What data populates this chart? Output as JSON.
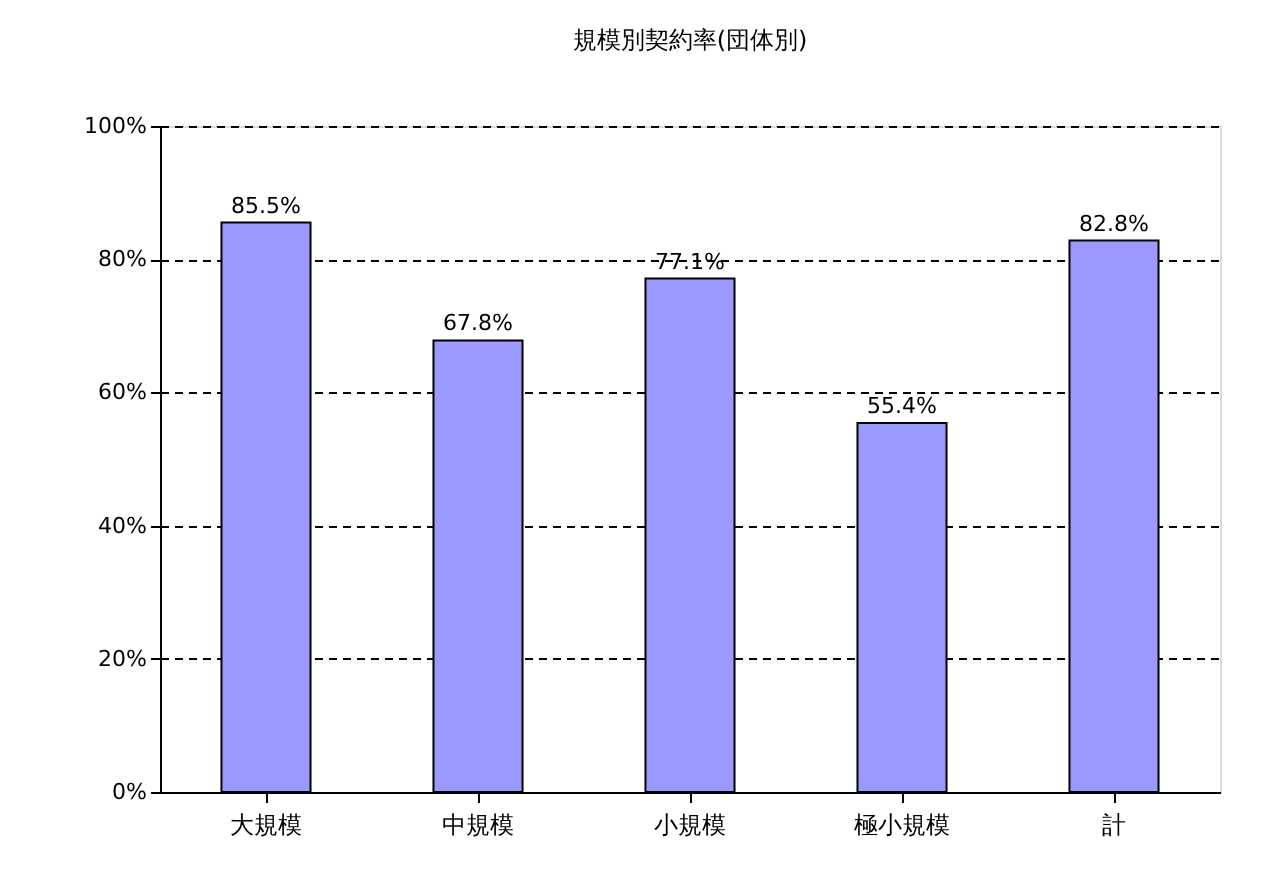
{
  "chart_data": {
    "type": "bar",
    "title": "規模別契約率(団体別)",
    "categories": [
      "大規模",
      "中規模",
      "小規模",
      "極小規模",
      "計"
    ],
    "values": [
      85.5,
      67.8,
      77.1,
      55.4,
      82.8
    ],
    "value_labels": [
      "85.5%",
      "67.8%",
      "77.1%",
      "55.4%",
      "82.8%"
    ],
    "color": "#9999ff",
    "ylim": [
      0,
      100
    ],
    "yticks": [
      {
        "value": 0,
        "label": "0%"
      },
      {
        "value": 20,
        "label": "20%"
      },
      {
        "value": 40,
        "label": "40%"
      },
      {
        "value": 60,
        "label": "60%"
      },
      {
        "value": 80,
        "label": "80%"
      },
      {
        "value": 100,
        "label": "100%"
      }
    ],
    "grid": "y"
  }
}
